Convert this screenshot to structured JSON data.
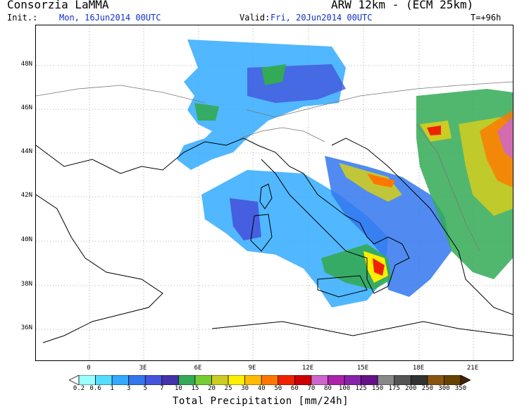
{
  "header": {
    "organization": "Consorzia LaMMA",
    "model": "ARW 12km - (ECM 25km)",
    "init_label": "Init.:",
    "init_value": "Mon, 16Jun2014 00UTC",
    "valid_label": "Valid:",
    "valid_value": "Fri, 20Jun2014 00UTC",
    "timestep": "T=+96h"
  },
  "map": {
    "lat_labels": [
      "48N",
      "46N",
      "44N",
      "42N",
      "40N",
      "38N",
      "36N"
    ],
    "lon_labels": [
      "0",
      "3E",
      "6E",
      "9E",
      "12E",
      "15E",
      "18E",
      "21E"
    ]
  },
  "colorbar": {
    "labels": [
      "0.2",
      "0.6",
      "1",
      "3",
      "5",
      "7",
      "10",
      "15",
      "20",
      "25",
      "30",
      "40",
      "50",
      "60",
      "70",
      "80",
      "100",
      "125",
      "150",
      "175",
      "200",
      "250",
      "300",
      "350"
    ],
    "colors": [
      "#ffffff",
      "#99ffff",
      "#55ddff",
      "#33aaff",
      "#3377ee",
      "#4455dd",
      "#4433aa",
      "#33aa55",
      "#77cc33",
      "#cccc22",
      "#ffee00",
      "#ffbb00",
      "#ff7700",
      "#ee2200",
      "#cc0000",
      "#cc66cc",
      "#aa22aa",
      "#8822aa",
      "#661188",
      "#888888",
      "#555555",
      "#333333",
      "#885511",
      "#664400",
      "#442200"
    ],
    "title": "Total Precipitation [mm/24h]"
  },
  "colors": {
    "header_value": "#1030c8",
    "border": "#000000"
  }
}
